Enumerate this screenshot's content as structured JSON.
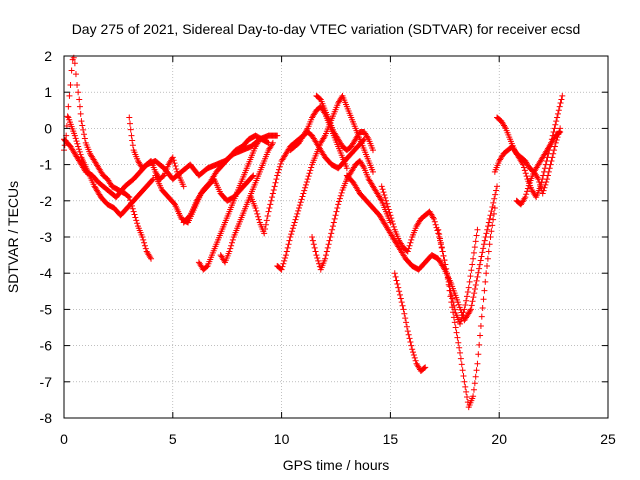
{
  "chart_data": {
    "type": "scatter",
    "title": "Day 275 of 2021, Sidereal Day-to-day VTEC variation (SDTVAR) for receiver ecsd",
    "xlabel": "GPS time / hours",
    "ylabel": "SDTVAR / TECUs",
    "xlim": [
      0,
      25
    ],
    "ylim": [
      -8,
      2
    ],
    "x_ticks": [
      0,
      5,
      10,
      15,
      20,
      25
    ],
    "y_ticks": [
      -8,
      -7,
      -6,
      -5,
      -4,
      -3,
      -2,
      -1,
      0,
      1,
      2
    ],
    "x_tick_labels": [
      "0",
      "5",
      "10",
      "15",
      "20",
      "25"
    ],
    "y_tick_labels": [
      "-8",
      "-7",
      "-6",
      "-5",
      "-4",
      "-3",
      "-2",
      "-1",
      "0",
      "1",
      "2"
    ],
    "grid": true,
    "marker": "+",
    "color": "#ff0000",
    "series": [
      {
        "x": [
          0.0,
          0.1,
          0.2,
          0.3,
          0.35,
          0.4,
          0.45,
          0.5,
          0.6,
          0.7,
          0.8,
          1.0,
          1.2,
          1.4,
          1.6,
          1.8,
          2.0,
          2.2,
          2.5,
          2.8,
          3.0,
          3.2,
          3.4,
          3.6,
          3.8,
          4.0
        ],
        "y": [
          -0.6,
          -0.2,
          0.6,
          1.2,
          1.6,
          1.9,
          1.95,
          1.8,
          1.2,
          0.8,
          0.2,
          -0.4,
          -0.7,
          -0.9,
          -1.1,
          -1.3,
          -1.4,
          -1.6,
          -1.7,
          -1.8,
          -1.9,
          -2.3,
          -2.7,
          -3.0,
          -3.4,
          -3.6
        ]
      },
      {
        "x": [
          0.0,
          0.3,
          0.5,
          0.8,
          1.0,
          1.3,
          1.6,
          2.0,
          2.4,
          2.8,
          3.2,
          3.5,
          3.8,
          4.2,
          4.6,
          5.0,
          5.4,
          5.8,
          6.2,
          6.6,
          7.0,
          7.4,
          7.8,
          8.2,
          8.6,
          9.0,
          9.4,
          9.8
        ],
        "y": [
          -0.3,
          -0.5,
          -0.7,
          -1.0,
          -1.2,
          -1.3,
          -1.5,
          -1.7,
          -1.9,
          -1.6,
          -1.4,
          -1.2,
          -1.0,
          -0.9,
          -1.1,
          -1.4,
          -1.2,
          -1.0,
          -1.3,
          -1.1,
          -1.0,
          -0.9,
          -0.7,
          -0.6,
          -0.5,
          -0.3,
          -0.2,
          -0.2
        ]
      },
      {
        "x": [
          0.2,
          0.5,
          0.8,
          1.1,
          1.4,
          1.7,
          2.0,
          2.3,
          2.6,
          2.9,
          3.2,
          3.5,
          3.8,
          4.1
        ],
        "y": [
          0.3,
          -0.2,
          -0.8,
          -1.2,
          -1.6,
          -1.9,
          -2.1,
          -2.2,
          -2.4,
          -2.2,
          -2.0,
          -1.8,
          -1.6,
          -1.4
        ]
      },
      {
        "x": [
          3.0,
          3.1,
          3.2,
          3.4,
          3.6,
          3.8,
          4.0,
          4.2,
          4.4,
          4.6,
          4.8,
          5.0,
          5.2,
          5.5
        ],
        "y": [
          0.3,
          -0.2,
          -0.6,
          -0.9,
          -1.1,
          -1.0,
          -0.9,
          -1.2,
          -1.4,
          -1.3,
          -1.0,
          -0.8,
          -1.2,
          -1.6
        ]
      },
      {
        "x": [
          4.2,
          4.5,
          4.8,
          5.1,
          5.4,
          5.7,
          6.0,
          6.3,
          6.6,
          6.9,
          7.2,
          7.5,
          7.8,
          8.1,
          8.4,
          8.7
        ],
        "y": [
          -1.3,
          -1.7,
          -1.9,
          -2.1,
          -2.5,
          -2.6,
          -2.2,
          -1.8,
          -1.6,
          -1.4,
          -1.8,
          -2.0,
          -1.9,
          -1.7,
          -1.5,
          -1.3
        ]
      },
      {
        "x": [
          5.5,
          5.8,
          6.1,
          6.4,
          6.7,
          7.0,
          7.3,
          7.6,
          7.9,
          8.2,
          8.5,
          8.8,
          9.1,
          9.4
        ],
        "y": [
          -2.6,
          -2.4,
          -2.0,
          -1.7,
          -1.5,
          -1.2,
          -1.0,
          -0.8,
          -0.6,
          -0.5,
          -0.3,
          -0.2,
          -0.3,
          -0.4
        ]
      },
      {
        "x": [
          6.2,
          6.4,
          6.6,
          6.8,
          7.0,
          7.2,
          7.4,
          7.6,
          7.8,
          8.0,
          8.2,
          8.4,
          8.6,
          8.8,
          9.0
        ],
        "y": [
          -3.7,
          -3.9,
          -3.8,
          -3.5,
          -3.2,
          -2.9,
          -2.6,
          -2.3,
          -2.0,
          -1.7,
          -1.4,
          -1.1,
          -0.8,
          -0.5,
          -0.3
        ]
      },
      {
        "x": [
          7.2,
          7.4,
          7.6,
          7.8,
          8.0,
          8.2,
          8.4,
          8.6,
          8.8,
          9.0,
          9.2,
          9.4,
          9.6
        ],
        "y": [
          -3.5,
          -3.7,
          -3.4,
          -3.0,
          -2.7,
          -2.4,
          -2.1,
          -1.8,
          -1.5,
          -1.2,
          -0.9,
          -0.6,
          -0.4
        ]
      },
      {
        "x": [
          8.6,
          8.8,
          9.0,
          9.2,
          9.4,
          9.6,
          9.8,
          10.0,
          10.2,
          10.4,
          10.6,
          10.8,
          11.0,
          11.2,
          11.4,
          11.6,
          11.8,
          12.0,
          12.3,
          12.6,
          12.9,
          13.2,
          13.5,
          13.8
        ],
        "y": [
          -1.9,
          -2.2,
          -2.6,
          -2.9,
          -2.3,
          -1.8,
          -1.3,
          -0.9,
          -0.7,
          -0.5,
          -0.4,
          -0.3,
          -0.2,
          -0.1,
          -0.2,
          -0.4,
          -0.6,
          -0.8,
          -1.0,
          -1.1,
          -0.9,
          -0.7,
          -0.5,
          -0.3
        ]
      },
      {
        "x": [
          9.8,
          10.0,
          10.2,
          10.4,
          10.6,
          10.8,
          11.0,
          11.2,
          11.4,
          11.6,
          11.8,
          12.0,
          12.2,
          12.4,
          12.6,
          12.8,
          13.0,
          13.2,
          13.4,
          13.6,
          13.8,
          14.0,
          14.2
        ],
        "y": [
          -3.8,
          -3.9,
          -3.5,
          -3.0,
          -2.6,
          -2.2,
          -1.8,
          -1.4,
          -1.0,
          -0.7,
          -0.4,
          -0.2,
          0.1,
          0.4,
          0.7,
          0.9,
          0.6,
          0.3,
          0.0,
          -0.3,
          -0.6,
          -0.9,
          -1.2
        ]
      },
      {
        "x": [
          10.4,
          10.6,
          10.8,
          11.0,
          11.2,
          11.4,
          11.6,
          11.8,
          12.0,
          12.2,
          12.4,
          12.6,
          12.8,
          13.0
        ],
        "y": [
          -0.6,
          -0.5,
          -0.4,
          -0.2,
          0.0,
          0.3,
          0.5,
          0.6,
          0.4,
          0.1,
          -0.2,
          -0.5,
          -0.8,
          -1.1
        ]
      },
      {
        "x": [
          11.6,
          11.8,
          12.0,
          12.2,
          12.4,
          12.6,
          12.8,
          13.0,
          13.2,
          13.4,
          13.6,
          13.8,
          14.0,
          14.2
        ],
        "y": [
          0.9,
          0.8,
          0.5,
          0.2,
          -0.1,
          -0.3,
          -0.5,
          -0.6,
          -0.5,
          -0.3,
          -0.1,
          -0.1,
          -0.3,
          -0.6
        ]
      },
      {
        "x": [
          11.4,
          11.6,
          11.8,
          12.0,
          12.2,
          12.4,
          12.6,
          12.8,
          13.0,
          13.2,
          13.4,
          13.6,
          13.8,
          14.0,
          14.2,
          14.4,
          14.6,
          14.8,
          15.0
        ],
        "y": [
          -3.0,
          -3.5,
          -3.9,
          -3.6,
          -3.1,
          -2.6,
          -2.1,
          -1.7,
          -1.4,
          -1.2,
          -1.0,
          -0.9,
          -1.1,
          -1.4,
          -1.6,
          -1.8,
          -2.0,
          -2.3,
          -2.6
        ]
      },
      {
        "x": [
          13.0,
          13.3,
          13.6,
          13.9,
          14.2,
          14.5,
          14.8,
          15.1,
          15.4,
          15.7,
          16.0,
          16.3,
          16.6,
          16.9,
          17.2,
          17.5,
          17.8,
          18.1,
          18.4,
          18.7,
          19.0,
          19.3,
          19.6,
          19.9
        ],
        "y": [
          -1.3,
          -1.5,
          -1.8,
          -2.0,
          -2.2,
          -2.4,
          -2.7,
          -3.0,
          -3.3,
          -3.6,
          -3.8,
          -3.9,
          -3.7,
          -3.5,
          -3.6,
          -3.9,
          -4.3,
          -4.8,
          -5.3,
          -5.0,
          -4.1,
          -3.2,
          -2.4,
          -1.6
        ]
      },
      {
        "x": [
          14.6,
          14.8,
          15.0,
          15.2,
          15.4,
          15.6,
          15.8,
          16.0,
          16.2,
          16.4,
          16.6,
          16.8,
          17.0,
          17.2,
          17.4,
          17.6,
          17.8,
          18.0,
          18.2,
          18.4,
          18.6,
          18.8,
          19.0
        ],
        "y": [
          -1.6,
          -2.0,
          -2.4,
          -2.8,
          -3.1,
          -3.3,
          -3.4,
          -3.0,
          -2.7,
          -2.5,
          -2.4,
          -2.3,
          -2.5,
          -2.9,
          -3.4,
          -4.0,
          -4.6,
          -5.1,
          -5.4,
          -5.0,
          -4.4,
          -3.6,
          -2.8
        ]
      },
      {
        "x": [
          15.2,
          15.4,
          15.6,
          15.8,
          16.0,
          16.2,
          16.4,
          16.6
        ],
        "y": [
          -4.0,
          -4.5,
          -5.0,
          -5.6,
          -6.1,
          -6.5,
          -6.7,
          -6.6
        ]
      },
      {
        "x": [
          17.2,
          17.4,
          17.6,
          17.8,
          18.0,
          18.2,
          18.4,
          18.6,
          18.8,
          19.0,
          19.2,
          19.4,
          19.6,
          19.8
        ],
        "y": [
          -2.8,
          -3.4,
          -4.0,
          -4.8,
          -5.5,
          -6.2,
          -7.0,
          -7.7,
          -7.4,
          -6.5,
          -5.2,
          -4.0,
          -3.0,
          -2.2
        ]
      },
      {
        "x": [
          19.8,
          20.0,
          20.2,
          20.4,
          20.6,
          20.8,
          21.0,
          21.2,
          21.4,
          21.6,
          21.8,
          22.0,
          22.2,
          22.4,
          22.6,
          22.8
        ],
        "y": [
          -1.2,
          -0.9,
          -0.7,
          -0.6,
          -0.5,
          -0.7,
          -0.8,
          -0.9,
          -1.1,
          -1.2,
          -1.0,
          -0.8,
          -0.6,
          -0.4,
          -0.2,
          -0.1
        ]
      },
      {
        "x": [
          19.9,
          20.1,
          20.3,
          20.5,
          20.7,
          20.9,
          21.1,
          21.3,
          21.5,
          21.7,
          21.9,
          22.1,
          22.3,
          22.5,
          22.7,
          22.9
        ],
        "y": [
          0.3,
          0.2,
          0.0,
          -0.3,
          -0.6,
          -0.8,
          -1.0,
          -1.4,
          -1.7,
          -1.9,
          -1.6,
          -1.1,
          -0.6,
          -0.1,
          0.4,
          0.9
        ]
      },
      {
        "x": [
          20.8,
          21.0,
          21.2,
          21.4,
          21.6,
          21.8,
          22.0,
          22.2,
          22.4,
          22.6,
          22.8
        ],
        "y": [
          -2.0,
          -2.1,
          -1.9,
          -1.5,
          -1.2,
          -1.4,
          -1.8,
          -1.4,
          -0.9,
          -0.4,
          0.0
        ]
      }
    ]
  }
}
